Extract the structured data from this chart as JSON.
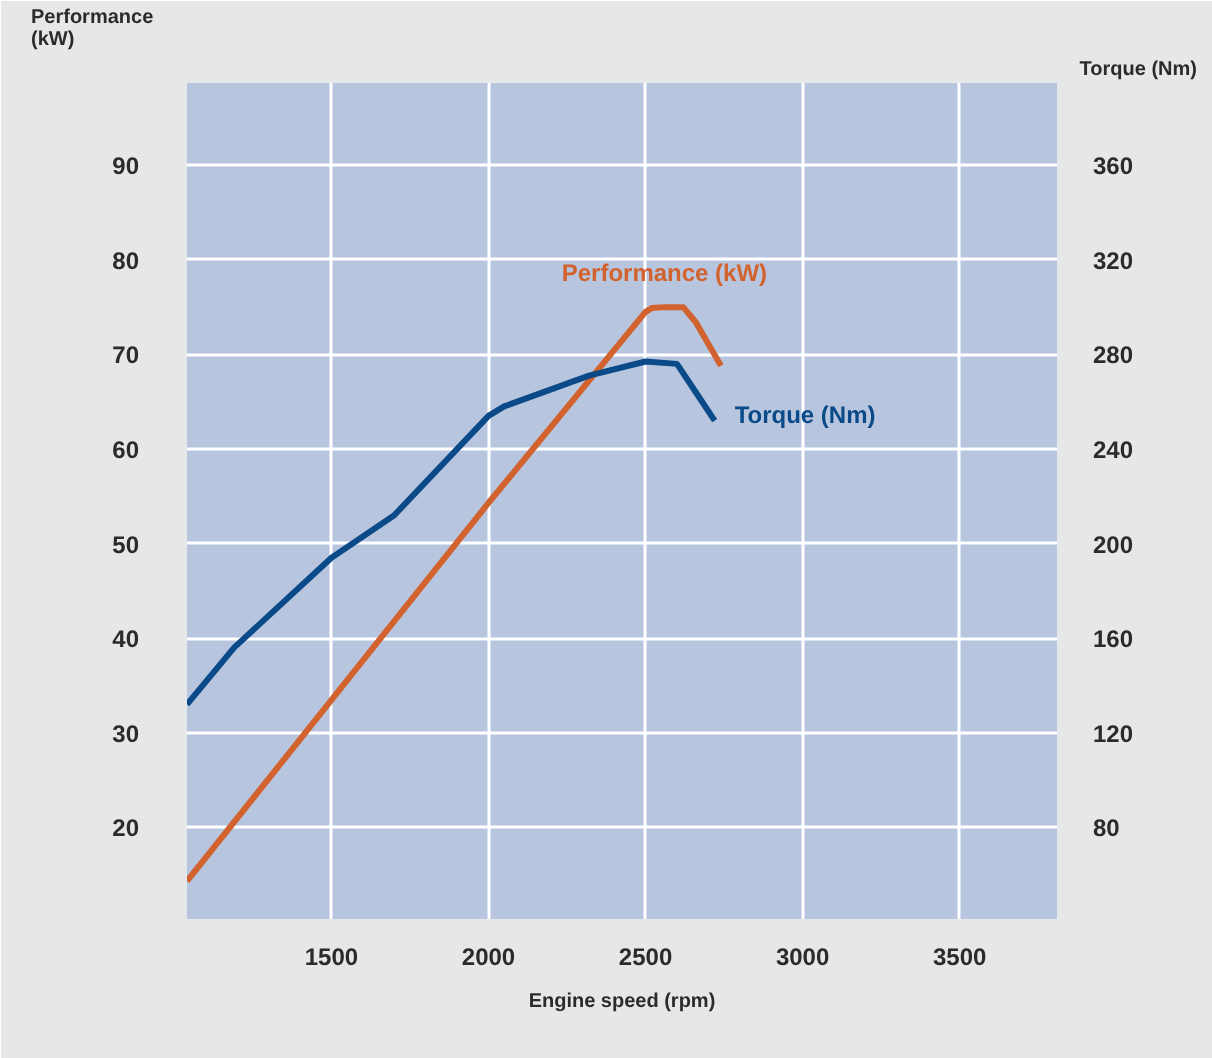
{
  "chart_data": {
    "type": "line",
    "xlabel": "Engine speed (rpm)",
    "ylabel": "Performance (kW)",
    "y2label": "Torque (Nm)",
    "xlim": [
      1040,
      3810
    ],
    "xticks": [
      1500,
      2000,
      2500,
      3000,
      3500
    ],
    "ylim": [
      10.3,
      98.7
    ],
    "yticks": [
      20,
      30,
      40,
      50,
      60,
      70,
      80,
      90
    ],
    "y2lim": [
      41.2,
      394.8
    ],
    "y2ticks": [
      80,
      120,
      160,
      200,
      240,
      280,
      320,
      360
    ],
    "grid": true,
    "legend": false,
    "line_style": "solid",
    "marker": "none",
    "series": [
      {
        "name": "Performance (kW)",
        "color": "#d2622e",
        "x": [
          1040,
          2000,
          2500,
          2520,
          2560,
          2620,
          2660,
          2700,
          2740
        ],
        "values": [
          14.3,
          54.3,
          74.5,
          74.9,
          75.0,
          75.0,
          73.4,
          71.1,
          68.8
        ]
      },
      {
        "name": "Torque (Nm)",
        "color": "#0a4a88",
        "axis": "y2",
        "x": [
          1040,
          1190,
          1500,
          1700,
          2000,
          2050,
          2320,
          2500,
          2600,
          2660,
          2720
        ],
        "values": [
          132,
          156,
          194,
          212,
          254,
          258,
          271,
          277,
          276,
          264,
          252
        ]
      }
    ]
  }
}
